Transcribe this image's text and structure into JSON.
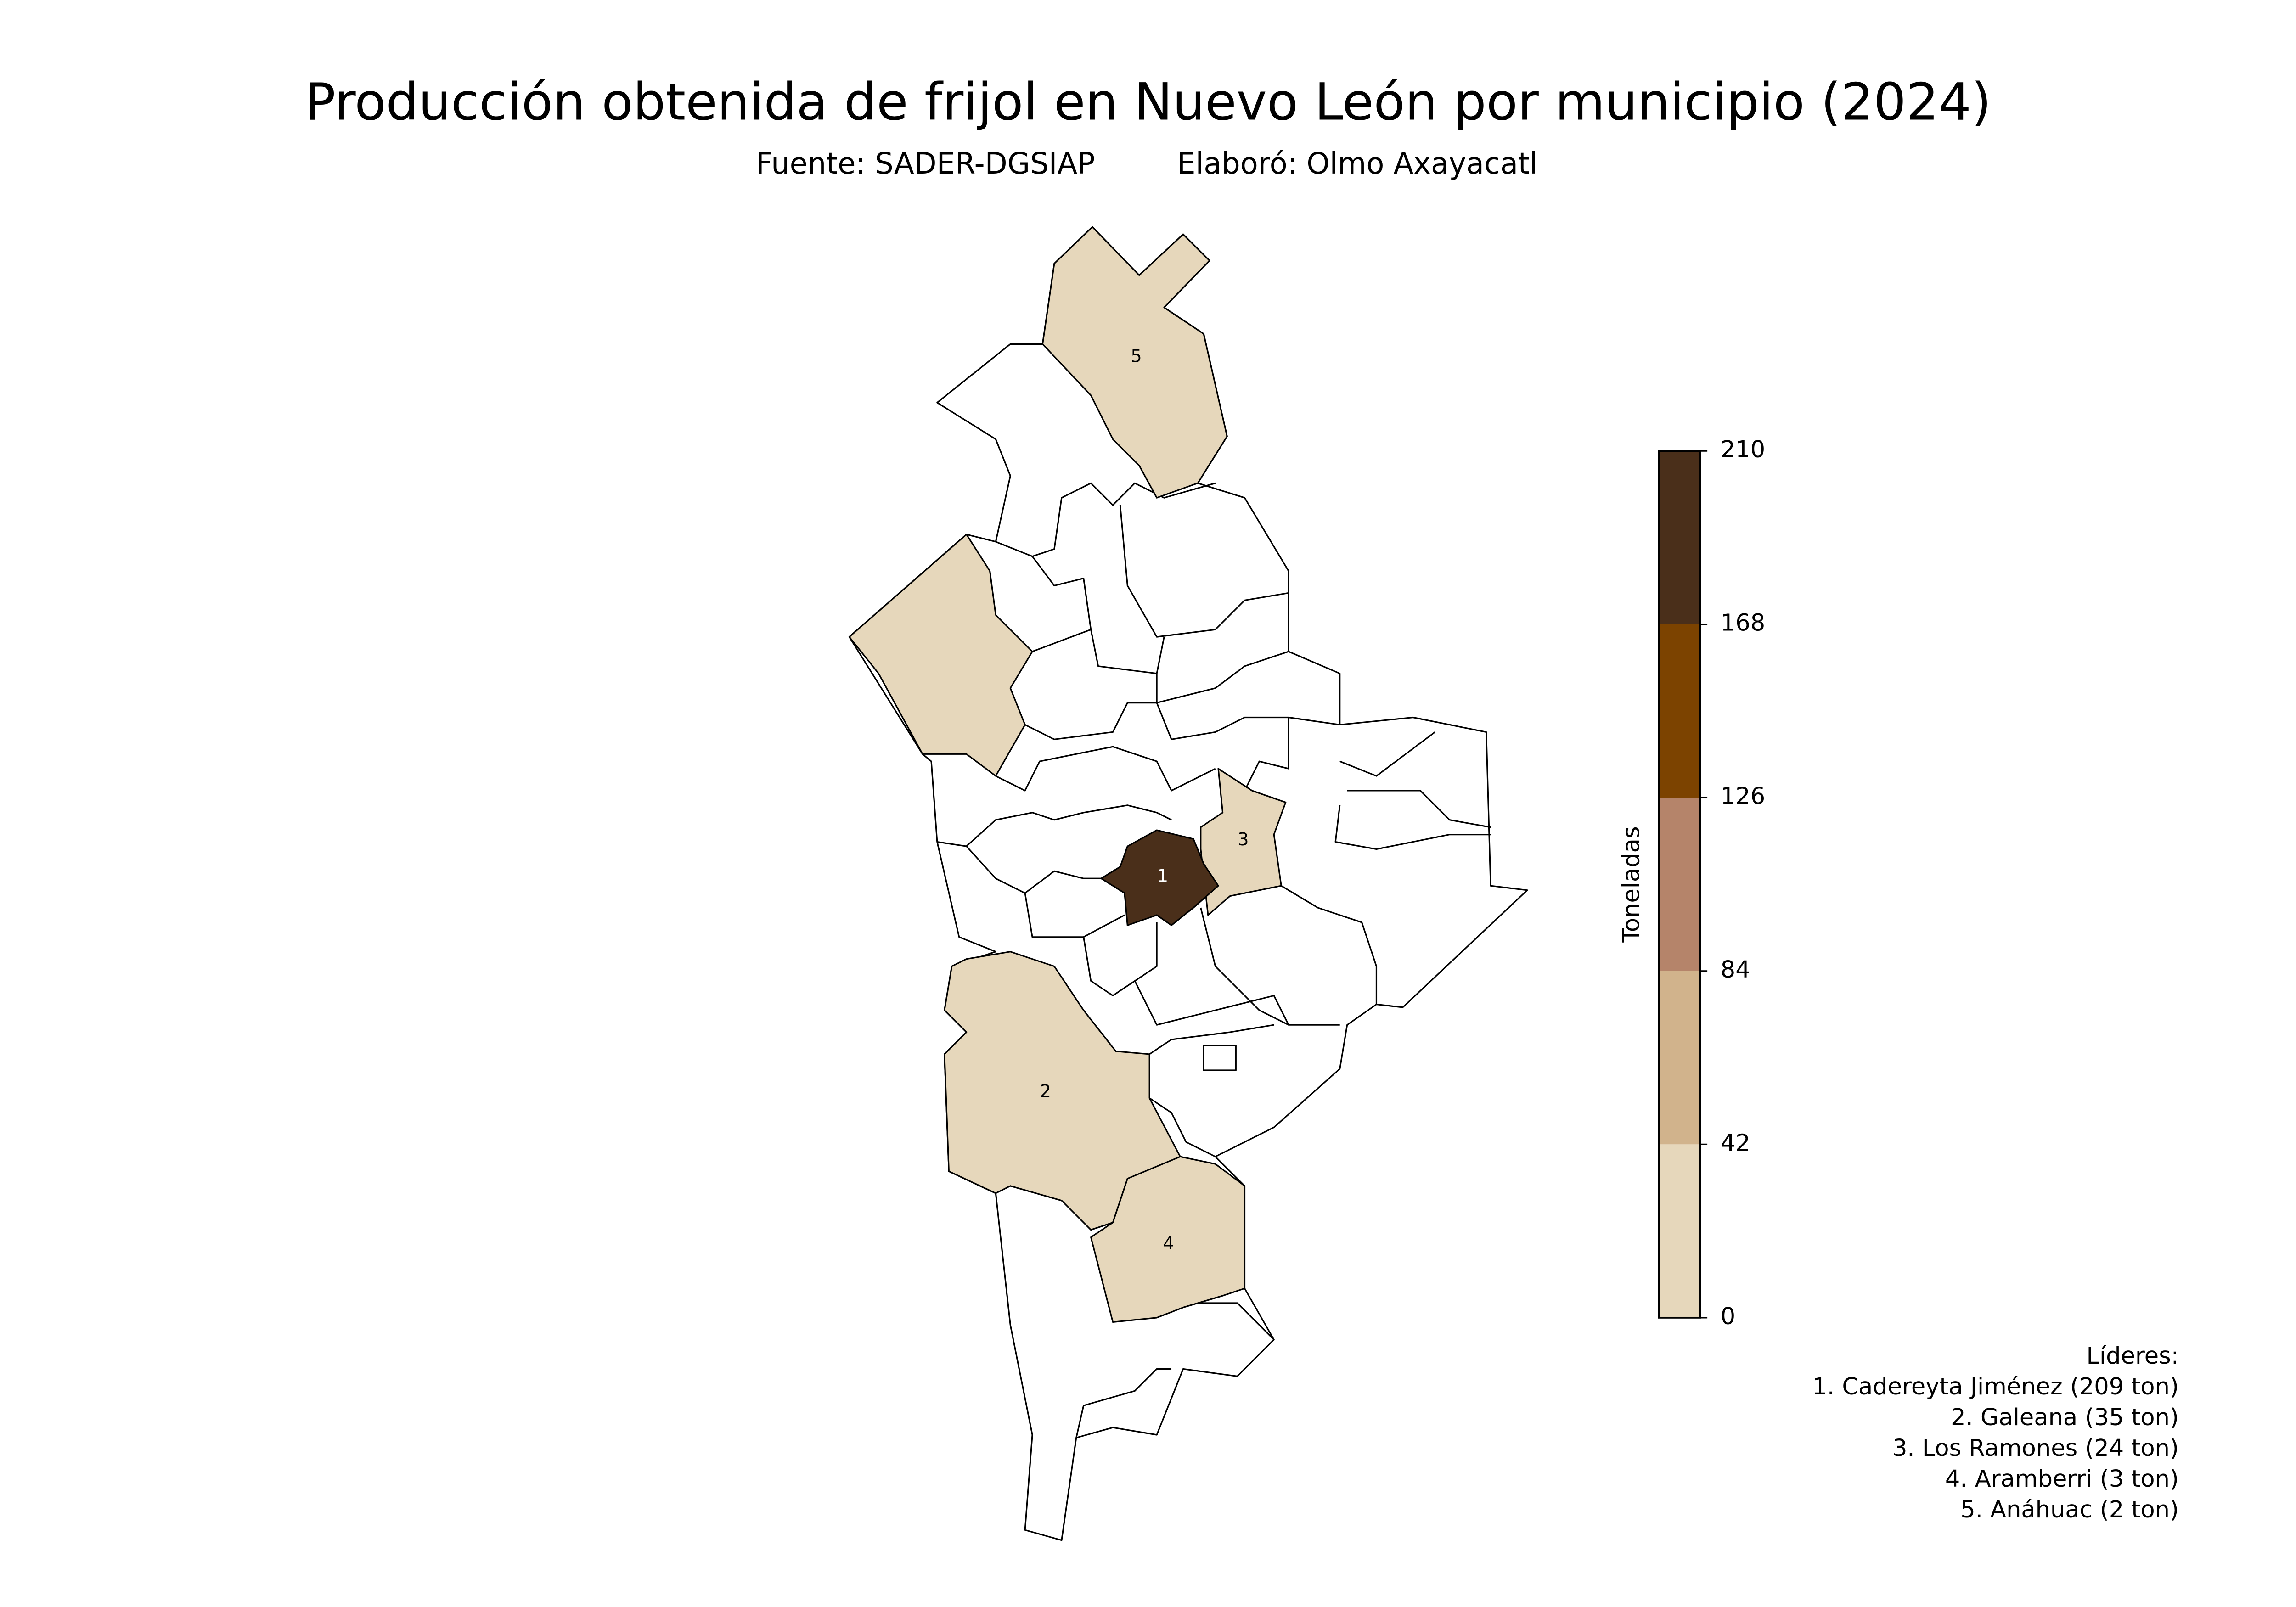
{
  "title": "Producción obtenida de frijol en Nuevo León por municipio (2024)",
  "source": "Fuente: SADER-DGSIAP",
  "author": "Elaboró: Olmo Axayacatl",
  "colorbar": {
    "label": "Toneladas",
    "bins": [
      0,
      42,
      84,
      126,
      168,
      210
    ],
    "colors": [
      "#e6d7bb",
      "#d1b38c",
      "#b5846a",
      "#7c4300",
      "#4a2f1a"
    ],
    "ticks": [
      0,
      42,
      84,
      126,
      168,
      210
    ]
  },
  "leaders_title": "Líderes:",
  "leaders": [
    {
      "map_label": "1",
      "label": "1. Cadereyta Jiménez (209 ton)",
      "value": 209
    },
    {
      "map_label": "2",
      "label": "2. Galeana (35 ton)",
      "value": 35
    },
    {
      "map_label": "3",
      "label": "3. Los Ramones (24 ton)",
      "value": 24
    },
    {
      "map_label": "4",
      "label": "4. Aramberri (3 ton)",
      "value": 3
    },
    {
      "map_label": "5",
      "label": "5. Anáhuac (2 ton)",
      "value": 2
    }
  ]
}
